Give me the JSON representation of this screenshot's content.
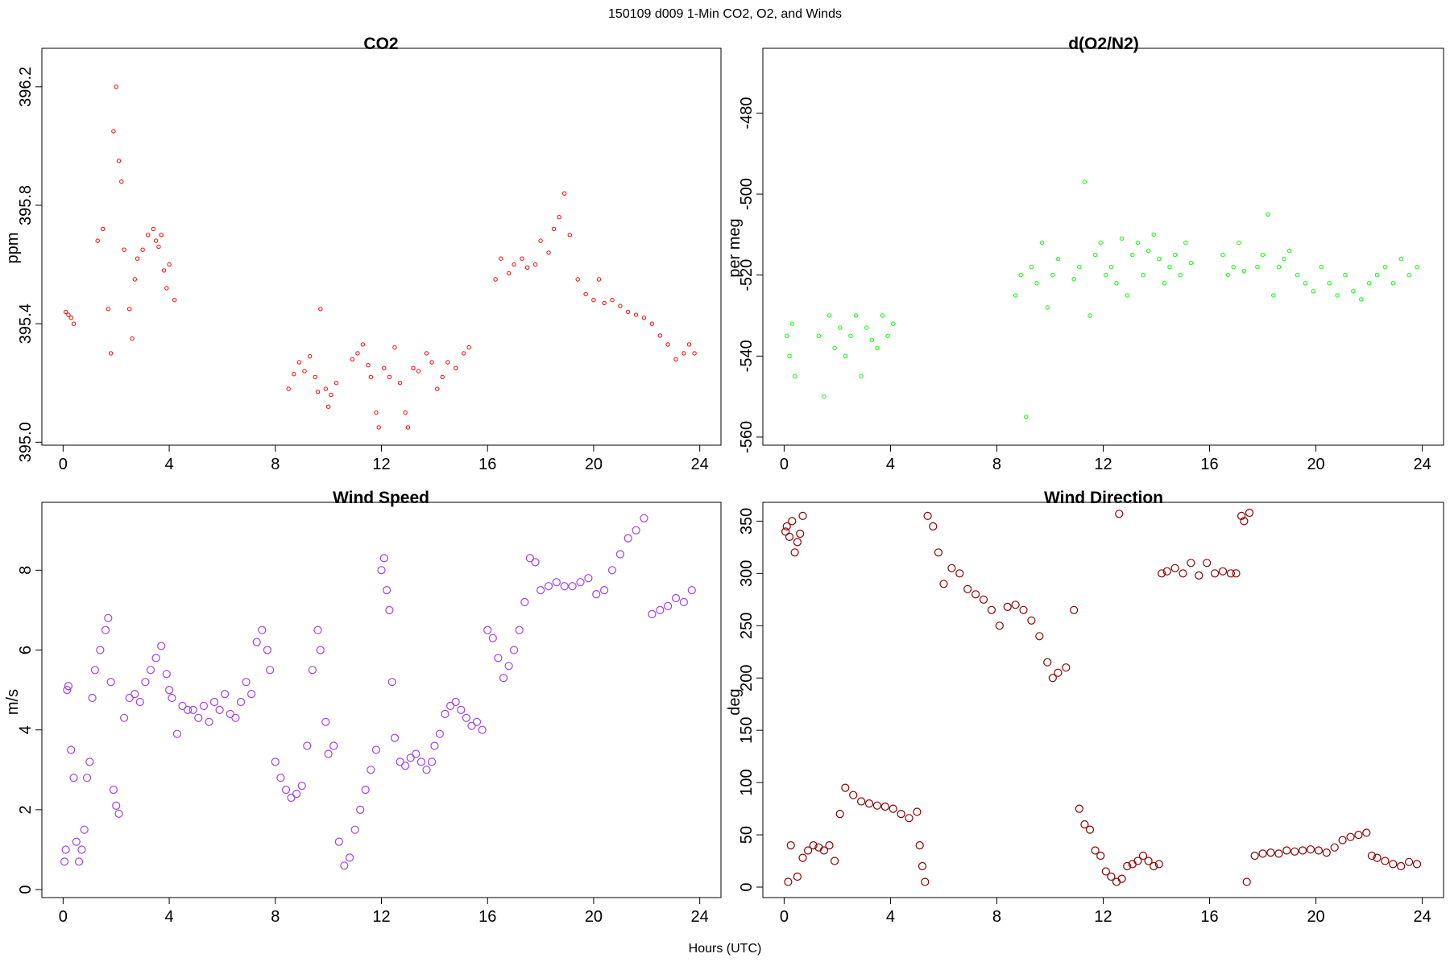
{
  "figure": {
    "suptitle": "150109   d009   1-Min CO2, O2, and Winds",
    "xlabel": "Hours (UTC)"
  },
  "chart_data": [
    {
      "type": "scatter",
      "title": "CO2",
      "ylabel": "ppm",
      "xlabel": "",
      "color": "#ff0000",
      "marker": "open-circle-small",
      "xlim": [
        -0.8,
        24.8
      ],
      "ylim": [
        394.99,
        396.33
      ],
      "xticks": [
        0,
        4,
        8,
        12,
        16,
        20,
        24
      ],
      "yticks": [
        395.0,
        395.4,
        395.8,
        396.2
      ],
      "ytick_labels": [
        "395.0",
        "395.4",
        "395.8",
        "396.2"
      ],
      "grid": false,
      "series": [
        {
          "x": [
            0.1,
            0.2,
            0.3,
            0.4,
            1.3,
            1.5,
            1.7,
            1.8,
            1.9,
            2.0,
            2.1,
            2.2,
            2.3,
            2.5,
            2.6,
            2.7,
            2.8,
            3.0,
            3.2,
            3.4,
            3.5,
            3.6,
            3.7,
            3.8,
            3.9,
            4.0,
            4.2,
            8.5,
            8.7,
            8.9,
            9.1,
            9.3,
            9.5,
            9.6,
            9.7,
            9.9,
            10.0,
            10.1,
            10.3,
            10.9,
            11.1,
            11.3,
            11.5,
            11.6,
            11.8,
            11.9,
            12.1,
            12.3,
            12.5,
            12.7,
            12.9,
            13.0,
            13.2,
            13.4,
            13.7,
            13.9,
            14.1,
            14.3,
            14.5,
            14.8,
            15.1,
            15.3,
            16.3,
            16.5,
            16.8,
            17.0,
            17.3,
            17.5,
            17.8,
            18.0,
            18.3,
            18.5,
            18.7,
            18.9,
            19.1,
            19.4,
            19.7,
            20.0,
            20.2,
            20.4,
            20.7,
            21.0,
            21.3,
            21.6,
            21.9,
            22.2,
            22.5,
            22.8,
            23.1,
            23.4,
            23.6,
            23.8
          ],
          "y": [
            395.44,
            395.43,
            395.42,
            395.4,
            395.68,
            395.72,
            395.45,
            395.3,
            396.05,
            396.2,
            395.95,
            395.88,
            395.65,
            395.45,
            395.35,
            395.55,
            395.62,
            395.65,
            395.7,
            395.72,
            395.68,
            395.66,
            395.7,
            395.58,
            395.52,
            395.6,
            395.48,
            395.18,
            395.23,
            395.27,
            395.24,
            395.29,
            395.22,
            395.17,
            395.45,
            395.18,
            395.12,
            395.16,
            395.2,
            395.28,
            395.3,
            395.33,
            395.26,
            395.22,
            395.1,
            395.05,
            395.25,
            395.22,
            395.32,
            395.2,
            395.1,
            395.05,
            395.25,
            395.24,
            395.3,
            395.27,
            395.18,
            395.22,
            395.27,
            395.25,
            395.3,
            395.32,
            395.55,
            395.62,
            395.57,
            395.6,
            395.62,
            395.59,
            395.6,
            395.68,
            395.64,
            395.72,
            395.76,
            395.84,
            395.7,
            395.55,
            395.5,
            395.48,
            395.55,
            395.47,
            395.48,
            395.46,
            395.44,
            395.43,
            395.42,
            395.4,
            395.36,
            395.33,
            395.28,
            395.3,
            395.33,
            395.3
          ]
        }
      ]
    },
    {
      "type": "scatter",
      "title": "d(O2/N2)",
      "ylabel": "per meg",
      "xlabel": "",
      "color": "#00ff00",
      "marker": "open-circle-small",
      "xlim": [
        -0.8,
        24.8
      ],
      "ylim": [
        -562,
        -464
      ],
      "xticks": [
        0,
        4,
        8,
        12,
        16,
        20,
        24
      ],
      "yticks": [
        -560,
        -540,
        -520,
        -500,
        -480
      ],
      "ytick_labels": [
        "-560",
        "-540",
        "-520",
        "-500",
        "-480"
      ],
      "grid": false,
      "series": [
        {
          "x": [
            0.1,
            0.2,
            0.3,
            0.4,
            1.3,
            1.5,
            1.7,
            1.9,
            2.1,
            2.3,
            2.5,
            2.7,
            2.9,
            3.1,
            3.3,
            3.5,
            3.7,
            3.9,
            4.1,
            8.7,
            8.9,
            9.1,
            9.3,
            9.5,
            9.7,
            9.9,
            10.1,
            10.3,
            10.9,
            11.1,
            11.3,
            11.5,
            11.7,
            11.9,
            12.1,
            12.3,
            12.5,
            12.7,
            12.9,
            13.1,
            13.3,
            13.5,
            13.7,
            13.9,
            14.1,
            14.3,
            14.5,
            14.7,
            14.9,
            15.1,
            15.3,
            16.5,
            16.7,
            16.9,
            17.1,
            17.3,
            17.8,
            18.0,
            18.2,
            18.4,
            18.6,
            18.8,
            19.0,
            19.3,
            19.6,
            19.9,
            20.2,
            20.5,
            20.8,
            21.1,
            21.4,
            21.7,
            22.0,
            22.3,
            22.6,
            22.9,
            23.2,
            23.5,
            23.8
          ],
          "y": [
            -535,
            -540,
            -532,
            -545,
            -535,
            -550,
            -530,
            -538,
            -533,
            -540,
            -535,
            -530,
            -545,
            -533,
            -536,
            -538,
            -530,
            -535,
            -532,
            -525,
            -520,
            -555,
            -518,
            -522,
            -512,
            -528,
            -520,
            -516,
            -521,
            -518,
            -497,
            -530,
            -515,
            -512,
            -520,
            -518,
            -522,
            -511,
            -525,
            -515,
            -512,
            -520,
            -514,
            -510,
            -516,
            -522,
            -518,
            -515,
            -520,
            -512,
            -517,
            -515,
            -520,
            -518,
            -512,
            -519,
            -518,
            -515,
            -505,
            -525,
            -518,
            -516,
            -514,
            -520,
            -522,
            -524,
            -518,
            -522,
            -525,
            -520,
            -524,
            -526,
            -522,
            -520,
            -518,
            -522,
            -516,
            -520,
            -518
          ]
        }
      ]
    },
    {
      "type": "scatter",
      "title": "Wind Speed",
      "ylabel": "m/s",
      "xlabel": "",
      "color": "#a040f0",
      "marker": "open-circle",
      "xlim": [
        -0.8,
        24.8
      ],
      "ylim": [
        -0.2,
        9.7
      ],
      "xticks": [
        0,
        4,
        8,
        12,
        16,
        20,
        24
      ],
      "yticks": [
        0,
        2,
        4,
        6,
        8
      ],
      "ytick_labels": [
        "0",
        "2",
        "4",
        "6",
        "8"
      ],
      "grid": false,
      "series": [
        {
          "x": [
            0.05,
            0.1,
            0.15,
            0.2,
            0.3,
            0.4,
            0.5,
            0.6,
            0.7,
            0.8,
            0.9,
            1.0,
            1.1,
            1.2,
            1.4,
            1.6,
            1.7,
            1.8,
            1.9,
            2.0,
            2.1,
            2.3,
            2.5,
            2.7,
            2.9,
            3.1,
            3.3,
            3.5,
            3.7,
            3.9,
            4.0,
            4.1,
            4.3,
            4.5,
            4.7,
            4.9,
            5.1,
            5.3,
            5.5,
            5.7,
            5.9,
            6.1,
            6.3,
            6.5,
            6.7,
            6.9,
            7.1,
            7.3,
            7.5,
            7.7,
            7.8,
            8.0,
            8.2,
            8.4,
            8.6,
            8.8,
            9.0,
            9.2,
            9.4,
            9.6,
            9.7,
            9.9,
            10.0,
            10.2,
            10.4,
            10.6,
            10.8,
            11.0,
            11.2,
            11.4,
            11.6,
            11.8,
            12.0,
            12.1,
            12.2,
            12.3,
            12.4,
            12.5,
            12.7,
            12.9,
            13.1,
            13.3,
            13.5,
            13.7,
            13.9,
            14.0,
            14.2,
            14.4,
            14.6,
            14.8,
            15.0,
            15.2,
            15.4,
            15.6,
            15.8,
            16.0,
            16.2,
            16.4,
            16.6,
            16.8,
            17.0,
            17.2,
            17.4,
            17.6,
            17.8,
            18.0,
            18.3,
            18.6,
            18.9,
            19.2,
            19.5,
            19.8,
            20.1,
            20.4,
            20.7,
            21.0,
            21.3,
            21.6,
            21.9,
            22.2,
            22.5,
            22.8,
            23.1,
            23.4,
            23.7
          ],
          "y": [
            0.7,
            1.0,
            5.0,
            5.1,
            3.5,
            2.8,
            1.2,
            0.7,
            1.0,
            1.5,
            2.8,
            3.2,
            4.8,
            5.5,
            6.0,
            6.5,
            6.8,
            5.2,
            2.5,
            2.1,
            1.9,
            4.3,
            4.8,
            4.9,
            4.7,
            5.2,
            5.5,
            5.8,
            6.1,
            5.4,
            5.0,
            4.8,
            3.9,
            4.6,
            4.5,
            4.5,
            4.3,
            4.6,
            4.2,
            4.7,
            4.5,
            4.9,
            4.4,
            4.3,
            4.7,
            5.2,
            4.9,
            6.2,
            6.5,
            6.0,
            5.5,
            3.2,
            2.8,
            2.5,
            2.3,
            2.4,
            2.6,
            3.6,
            5.5,
            6.5,
            6.0,
            4.2,
            3.4,
            3.6,
            1.2,
            0.6,
            0.8,
            1.5,
            2.0,
            2.5,
            3.0,
            3.5,
            8.0,
            8.3,
            7.5,
            7.0,
            5.2,
            3.8,
            3.2,
            3.1,
            3.3,
            3.4,
            3.2,
            3.0,
            3.2,
            3.6,
            3.9,
            4.4,
            4.6,
            4.7,
            4.5,
            4.3,
            4.1,
            4.2,
            4.0,
            6.5,
            6.3,
            5.8,
            5.3,
            5.6,
            6.0,
            6.5,
            7.2,
            8.3,
            8.2,
            7.5,
            7.6,
            7.7,
            7.6,
            7.6,
            7.7,
            7.8,
            7.4,
            7.5,
            8.0,
            8.4,
            8.8,
            9.0,
            9.3,
            6.9,
            7.0,
            7.1,
            7.3,
            7.2,
            7.5
          ]
        }
      ]
    },
    {
      "type": "scatter",
      "title": "Wind Direction",
      "ylabel": "deg",
      "xlabel": "",
      "color": "#8b0000",
      "marker": "open-circle",
      "xlim": [
        -0.8,
        24.8
      ],
      "ylim": [
        -10,
        368
      ],
      "xticks": [
        0,
        4,
        8,
        12,
        16,
        20,
        24
      ],
      "yticks": [
        0,
        50,
        100,
        150,
        200,
        250,
        300,
        350
      ],
      "ytick_labels": [
        "0",
        "50",
        "100",
        "150",
        "200",
        "250",
        "300",
        "350"
      ],
      "grid": false,
      "series": [
        {
          "x": [
            0.05,
            0.1,
            0.2,
            0.3,
            0.4,
            0.5,
            0.6,
            0.7,
            0.15,
            0.25,
            0.5,
            0.7,
            0.9,
            1.1,
            1.3,
            1.5,
            1.7,
            1.9,
            2.1,
            2.3,
            2.6,
            2.9,
            3.2,
            3.5,
            3.8,
            4.1,
            4.4,
            4.7,
            5.0,
            5.1,
            5.2,
            5.3,
            5.4,
            5.6,
            5.8,
            6.0,
            6.3,
            6.6,
            6.9,
            7.2,
            7.5,
            7.8,
            8.1,
            8.4,
            8.7,
            9.0,
            9.3,
            9.6,
            9.9,
            10.1,
            10.3,
            10.6,
            10.9,
            11.1,
            11.3,
            11.5,
            11.7,
            11.9,
            12.1,
            12.3,
            12.5,
            12.7,
            12.9,
            13.1,
            13.3,
            13.5,
            13.7,
            13.9,
            14.1,
            12.6,
            14.2,
            14.4,
            14.7,
            15.0,
            15.3,
            15.6,
            15.9,
            16.2,
            16.5,
            16.8,
            17.0,
            17.2,
            17.3,
            17.5,
            17.4,
            17.7,
            18.0,
            18.3,
            18.6,
            18.9,
            19.2,
            19.5,
            19.8,
            20.1,
            20.4,
            20.7,
            21.0,
            21.3,
            21.6,
            21.9,
            22.1,
            22.3,
            22.6,
            22.9,
            23.2,
            23.5,
            23.8
          ],
          "y": [
            340,
            345,
            335,
            350,
            320,
            330,
            338,
            355,
            5,
            40,
            10,
            28,
            35,
            40,
            38,
            35,
            40,
            25,
            70,
            95,
            88,
            82,
            80,
            78,
            77,
            75,
            70,
            66,
            72,
            40,
            20,
            5,
            355,
            345,
            320,
            290,
            305,
            300,
            285,
            280,
            275,
            265,
            250,
            268,
            270,
            265,
            255,
            240,
            215,
            200,
            205,
            210,
            265,
            75,
            60,
            55,
            35,
            30,
            15,
            10,
            5,
            8,
            20,
            22,
            25,
            30,
            25,
            20,
            22,
            357,
            300,
            302,
            305,
            300,
            310,
            298,
            310,
            300,
            302,
            300,
            300,
            355,
            350,
            358,
            5,
            30,
            32,
            33,
            32,
            35,
            34,
            35,
            36,
            35,
            33,
            38,
            45,
            48,
            50,
            52,
            30,
            28,
            25,
            22,
            20,
            24,
            22
          ]
        }
      ]
    }
  ]
}
